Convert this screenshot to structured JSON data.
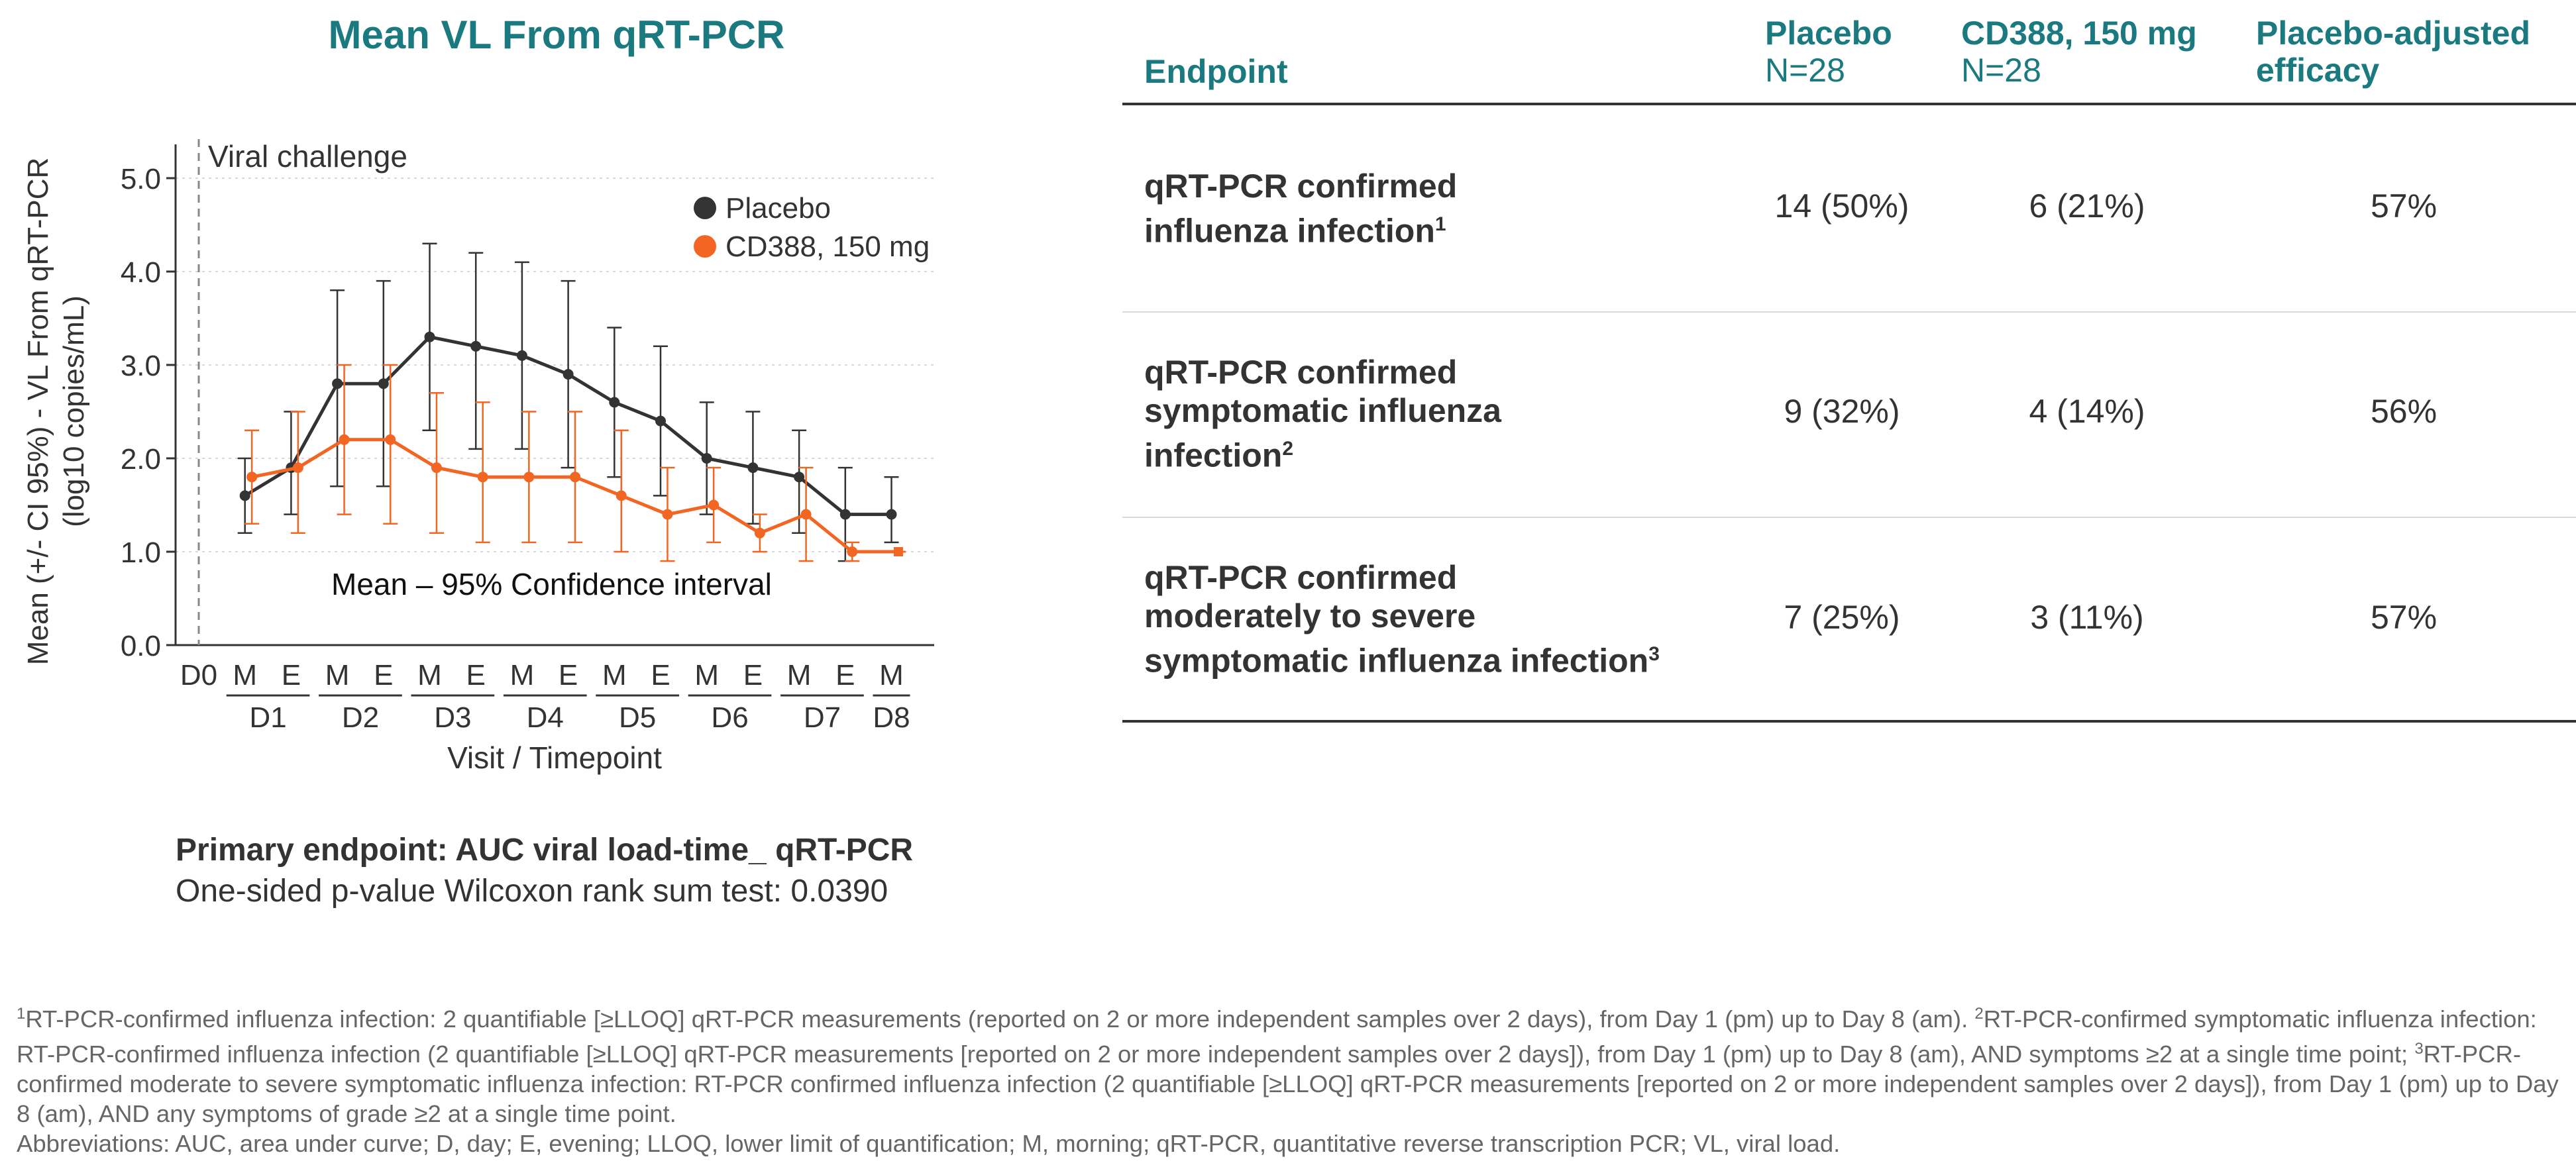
{
  "colors": {
    "teal": "#1a7a80",
    "placebo": "#333333",
    "cd388": "#f26522",
    "text": "#333333",
    "footnote": "#666666"
  },
  "chart_data": {
    "type": "line",
    "title": "Mean VL From qRT-PCR",
    "xlabel": "Visit / Timepoint",
    "ylabel_line1": "Mean (+/- CI 95%) - VL From qRT-PCR",
    "ylabel_line2": "(log10 copies/mL)",
    "ylim": [
      0,
      5
    ],
    "yticks": [
      "0.0",
      "1.0",
      "2.0",
      "3.0",
      "4.0",
      "5.0"
    ],
    "x_ticks": [
      "D0",
      "M",
      "E",
      "M",
      "E",
      "M",
      "E",
      "M",
      "E",
      "M",
      "E",
      "M",
      "E",
      "M",
      "E",
      "M"
    ],
    "day_groups": [
      "D1",
      "D2",
      "D3",
      "D4",
      "D5",
      "D6",
      "D7",
      "D8"
    ],
    "annotation_challenge": "Viral challenge",
    "annotation_ci": "Mean – 95% Confidence interval",
    "grid": "horizontal dotted",
    "legend_position": "top-right",
    "series": [
      {
        "name": "Placebo",
        "x_index": [
          1,
          2,
          3,
          4,
          5,
          6,
          7,
          8,
          9,
          10,
          11,
          12,
          13,
          14,
          15
        ],
        "values": [
          1.6,
          1.9,
          2.8,
          2.8,
          3.3,
          3.2,
          3.1,
          2.9,
          2.6,
          2.4,
          2.0,
          1.9,
          1.8,
          1.4,
          1.4
        ],
        "ci_low": [
          1.2,
          1.4,
          1.7,
          1.7,
          2.3,
          2.1,
          2.1,
          1.9,
          1.8,
          1.6,
          1.4,
          1.3,
          1.2,
          0.9,
          1.1
        ],
        "ci_high": [
          2.0,
          2.5,
          3.8,
          3.9,
          4.3,
          4.2,
          4.1,
          3.9,
          3.4,
          3.2,
          2.6,
          2.5,
          2.3,
          1.9,
          1.8
        ]
      },
      {
        "name": "CD388, 150 mg",
        "x_index": [
          1.15,
          2.15,
          3.15,
          4.15,
          5.15,
          6.15,
          7.15,
          8.15,
          9.15,
          10.15,
          11.15,
          12.15,
          13.15,
          14.15,
          15.15
        ],
        "values": [
          1.8,
          1.9,
          2.2,
          2.2,
          1.9,
          1.8,
          1.8,
          1.8,
          1.6,
          1.4,
          1.5,
          1.2,
          1.4,
          1.0,
          1.0
        ],
        "ci_low": [
          1.3,
          1.2,
          1.4,
          1.3,
          1.2,
          1.1,
          1.1,
          1.1,
          1.0,
          0.9,
          1.1,
          1.0,
          0.9,
          0.9,
          1.0
        ],
        "ci_high": [
          2.3,
          2.5,
          3.0,
          3.0,
          2.7,
          2.6,
          2.5,
          2.5,
          2.3,
          1.9,
          1.9,
          1.4,
          1.9,
          1.1,
          1.0
        ]
      }
    ]
  },
  "primary_endpoint": {
    "label": "Primary endpoint: AUC viral load-time_ qRT-PCR",
    "pvalue": "One-sided p-value Wilcoxon rank sum test: 0.0390"
  },
  "table": {
    "headers": {
      "endpoint": "Endpoint",
      "placebo": "Placebo",
      "placebo_n": "N=28",
      "cd388": "CD388, 150 mg",
      "cd388_n": "N=28",
      "efficacy_line1": "Placebo-adjusted",
      "efficacy_line2": "efficacy"
    },
    "rows": [
      {
        "label": "qRT-PCR confirmed\ninfluenza infection",
        "sup": "1",
        "placebo": "14 (50%)",
        "cd388": "6 (21%)",
        "efficacy": "57%"
      },
      {
        "label": "qRT-PCR confirmed\nsymptomatic influenza\ninfection",
        "sup": "2",
        "placebo": "9 (32%)",
        "cd388": "4 (14%)",
        "efficacy": "56%"
      },
      {
        "label": "qRT-PCR confirmed\nmoderately to severe\nsymptomatic influenza infection",
        "sup": "3",
        "placebo": "7 (25%)",
        "cd388": "3 (11%)",
        "efficacy": "57%"
      }
    ]
  },
  "footnote": {
    "sup1": "1",
    "text1": "RT-PCR-confirmed influenza infection: 2 quantifiable [≥LLOQ] qRT-PCR measurements (reported on 2 or more independent samples over 2 days), from Day 1 (pm) up to Day 8 (am). ",
    "sup2": "2",
    "text2": "RT-PCR-confirmed symptomatic influenza infection: RT-PCR-confirmed influenza infection (2 quantifiable [≥LLOQ] qRT-PCR measurements [reported on 2 or more independent samples over 2 days]), from Day 1 (pm) up to Day 8 (am), AND symptoms ≥2 at a single time point; ",
    "sup3": "3",
    "text3": "RT-PCR-confirmed moderate to severe symptomatic influenza infection: RT-PCR confirmed influenza infection (2 quantifiable [≥LLOQ] qRT-PCR measurements [reported on 2 or more independent samples over 2 days]), from Day 1 (pm) up to Day 8 (am), AND any symptoms of grade ≥2 at a single time point.",
    "abbreviations": "Abbreviations: AUC, area under curve; D, day; E, evening; LLOQ, lower limit of quantification; M, morning; qRT-PCR, quantitative reverse transcription PCR; VL, viral load."
  }
}
